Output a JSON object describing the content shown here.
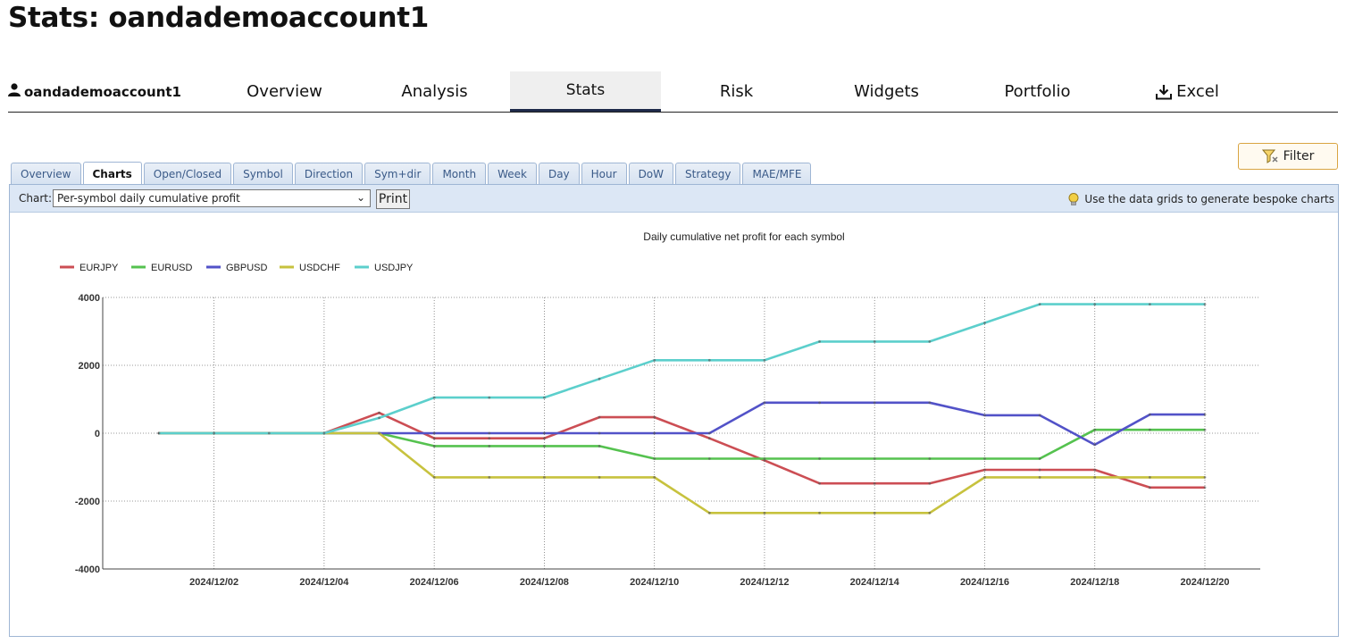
{
  "page": {
    "title": "Stats: oandademoaccount1"
  },
  "account": {
    "name": "oandademoaccount1",
    "icon": "user-icon"
  },
  "nav": {
    "tabs": [
      "Overview",
      "Analysis",
      "Stats",
      "Risk",
      "Widgets",
      "Portfolio",
      "Excel"
    ],
    "active": "Stats",
    "excel_icon": "download-icon"
  },
  "filter": {
    "label": "Filter",
    "icon": "filter-icon"
  },
  "subtabs": {
    "items": [
      "Overview",
      "Charts",
      "Open/Closed",
      "Symbol",
      "Direction",
      "Sym+dir",
      "Month",
      "Week",
      "Day",
      "Hour",
      "DoW",
      "Strategy",
      "MAE/MFE"
    ],
    "active": "Charts"
  },
  "toolbar": {
    "chart_label": "Chart:",
    "chart_selected": "Per-symbol daily cumulative profit",
    "print_label": "Print",
    "tip_text": "Use the data grids to generate bespoke charts",
    "tip_icon": "lightbulb-icon"
  },
  "colors": {
    "EURJPY": "#cc4e54",
    "EURUSD": "#55c24f",
    "GBPUSD": "#5252c8",
    "USDCHF": "#c7c23e",
    "USDJPY": "#5ccfcc"
  },
  "chart_data": {
    "type": "line",
    "title": "Daily cumulative net profit for each symbol",
    "xlabel": "",
    "ylabel": "",
    "x": [
      "2024/12/01",
      "2024/12/02",
      "2024/12/03",
      "2024/12/04",
      "2024/12/05",
      "2024/12/06",
      "2024/12/07",
      "2024/12/08",
      "2024/12/09",
      "2024/12/10",
      "2024/12/11",
      "2024/12/12",
      "2024/12/13",
      "2024/12/14",
      "2024/12/15",
      "2024/12/16",
      "2024/12/17",
      "2024/12/18",
      "2024/12/19",
      "2024/12/20"
    ],
    "xticks": [
      "2024/12/02",
      "2024/12/04",
      "2024/12/06",
      "2024/12/08",
      "2024/12/10",
      "2024/12/12",
      "2024/12/14",
      "2024/12/16",
      "2024/12/18",
      "2024/12/20"
    ],
    "ylim": [
      -4000,
      4000
    ],
    "yticks": [
      4000,
      2000,
      0,
      -2000,
      -4000
    ],
    "grid": true,
    "legend": "top-left",
    "series": [
      {
        "name": "EURJPY",
        "values": [
          0,
          0,
          0,
          0,
          600,
          -150,
          -150,
          -150,
          470,
          470,
          -150,
          -800,
          -1480,
          -1480,
          -1480,
          -1080,
          -1080,
          -1080,
          -1600,
          -1600
        ]
      },
      {
        "name": "EURUSD",
        "values": [
          0,
          0,
          0,
          0,
          0,
          -380,
          -380,
          -380,
          -380,
          -750,
          -750,
          -750,
          -750,
          -750,
          -750,
          -750,
          -750,
          100,
          100,
          100
        ]
      },
      {
        "name": "GBPUSD",
        "values": [
          0,
          0,
          0,
          0,
          0,
          0,
          0,
          0,
          0,
          0,
          0,
          900,
          900,
          900,
          900,
          530,
          530,
          -340,
          550,
          550
        ]
      },
      {
        "name": "USDCHF",
        "values": [
          0,
          0,
          0,
          0,
          0,
          -1300,
          -1300,
          -1300,
          -1300,
          -1300,
          -2350,
          -2350,
          -2350,
          -2350,
          -2350,
          -1300,
          -1300,
          -1300,
          -1300,
          -1300
        ]
      },
      {
        "name": "USDJPY",
        "values": [
          0,
          0,
          0,
          0,
          450,
          1050,
          1050,
          1050,
          1600,
          2150,
          2150,
          2150,
          2700,
          2700,
          2700,
          3250,
          3800,
          3800,
          3800,
          3800
        ]
      }
    ]
  }
}
